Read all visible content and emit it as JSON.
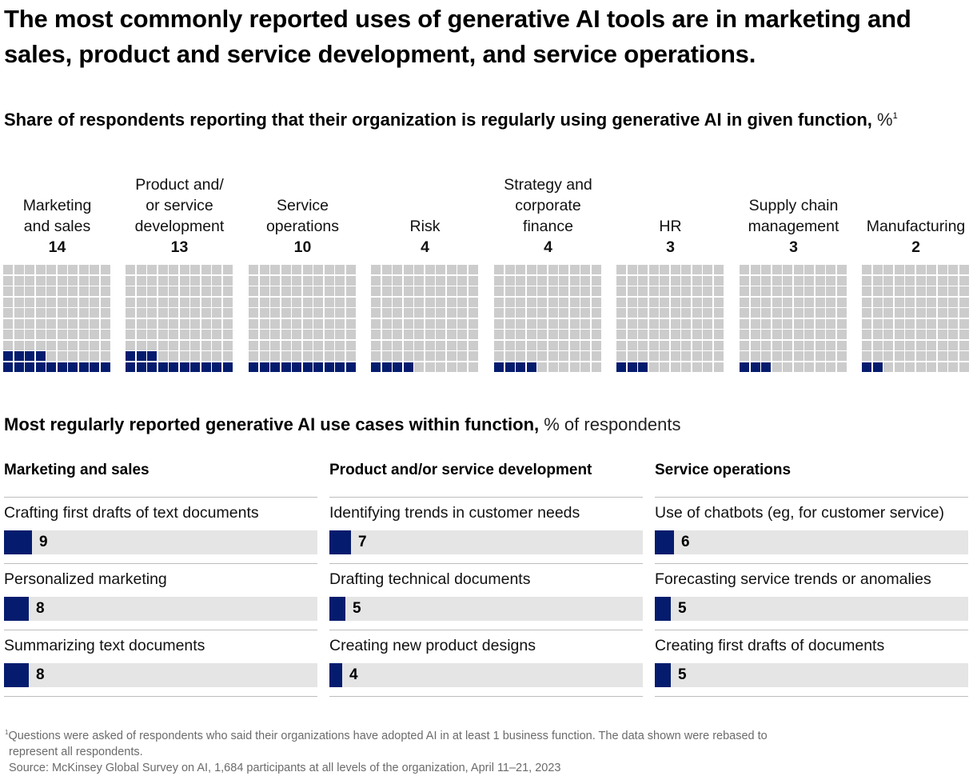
{
  "title": "The most commonly reported uses of generative AI tools are in marketing and sales, product and service development, and service operations.",
  "subtitle": {
    "bold": "Share of respondents reporting that their organization is regularly using generative AI in given function,",
    "unit": "%",
    "footnote_marker": "1"
  },
  "colors": {
    "filled": "#051c6e",
    "empty": "#cccccc",
    "track": "#e5e5e5"
  },
  "chart_data": [
    {
      "type": "waffle",
      "title": "Share of respondents reporting that their organization is regularly using generative AI in given function, %",
      "grid": "10x10",
      "categories": [
        "Marketing and sales",
        "Product and/ or service development",
        "Service operations",
        "Risk",
        "Strategy and corporate finance",
        "HR",
        "Supply chain management",
        "Manufacturing"
      ],
      "values": [
        14,
        13,
        10,
        4,
        4,
        3,
        3,
        2
      ],
      "ylim": [
        0,
        100
      ]
    },
    {
      "type": "bar",
      "title": "Most regularly reported generative AI use cases within function, % of respondents",
      "groups": [
        {
          "name": "Marketing and sales",
          "categories": [
            "Crafting first drafts of text documents",
            "Personalized marketing",
            "Summarizing text documents"
          ],
          "values": [
            9,
            8,
            8
          ]
        },
        {
          "name": "Product and/or service development",
          "categories": [
            "Identifying trends in customer needs",
            "Drafting technical documents",
            "Creating new product designs"
          ],
          "values": [
            7,
            5,
            4
          ]
        },
        {
          "name": "Service operations",
          "categories": [
            "Use of chatbots (eg, for customer service)",
            "Forecasting service trends or anomalies",
            "Creating first drafts of documents"
          ],
          "values": [
            6,
            5,
            5
          ]
        }
      ],
      "xlim": [
        0,
        100
      ]
    }
  ],
  "waffles": [
    {
      "label_lines": [
        "Marketing",
        "and sales"
      ],
      "value": "14",
      "n": 14
    },
    {
      "label_lines": [
        "Product and/",
        "or service",
        "development"
      ],
      "value": "13",
      "n": 13
    },
    {
      "label_lines": [
        "Service",
        "operations"
      ],
      "value": "10",
      "n": 10
    },
    {
      "label_lines": [
        "Risk"
      ],
      "value": "4",
      "n": 4
    },
    {
      "label_lines": [
        "Strategy and",
        "corporate",
        "finance"
      ],
      "value": "4",
      "n": 4
    },
    {
      "label_lines": [
        "HR"
      ],
      "value": "3",
      "n": 3
    },
    {
      "label_lines": [
        "Supply chain",
        "management"
      ],
      "value": "3",
      "n": 3
    },
    {
      "label_lines": [
        "Manufacturing"
      ],
      "value": "2",
      "n": 2
    }
  ],
  "section2": {
    "bold": "Most regularly reported generative AI use cases within function,",
    "light": "% of respondents"
  },
  "functions": [
    {
      "title": "Marketing and sales",
      "items": [
        {
          "label": "Crafting first drafts of text documents",
          "value": "9",
          "n": 9
        },
        {
          "label": "Personalized marketing",
          "value": "8",
          "n": 8
        },
        {
          "label": "Summarizing text documents",
          "value": "8",
          "n": 8
        }
      ]
    },
    {
      "title": "Product and/or service development",
      "items": [
        {
          "label": "Identifying trends in customer needs",
          "value": "7",
          "n": 7
        },
        {
          "label": "Drafting technical documents",
          "value": "5",
          "n": 5
        },
        {
          "label": "Creating new product designs",
          "value": "4",
          "n": 4
        }
      ]
    },
    {
      "title": "Service operations",
      "items": [
        {
          "label": "Use of chatbots (eg, for customer service)",
          "value": "6",
          "n": 6
        },
        {
          "label": "Forecasting service trends or anomalies",
          "value": "5",
          "n": 5
        },
        {
          "label": "Creating first drafts of documents",
          "value": "5",
          "n": 5
        }
      ]
    }
  ],
  "footnote": {
    "marker": "1",
    "line1": "Questions were asked of respondents who said their organizations have adopted AI in at least 1 business function. The data shown were rebased to",
    "line2": "represent all respondents.",
    "source": "Source: McKinsey Global Survey on AI, 1,684 participants at all levels of the organization, April 11–21, 2023"
  }
}
